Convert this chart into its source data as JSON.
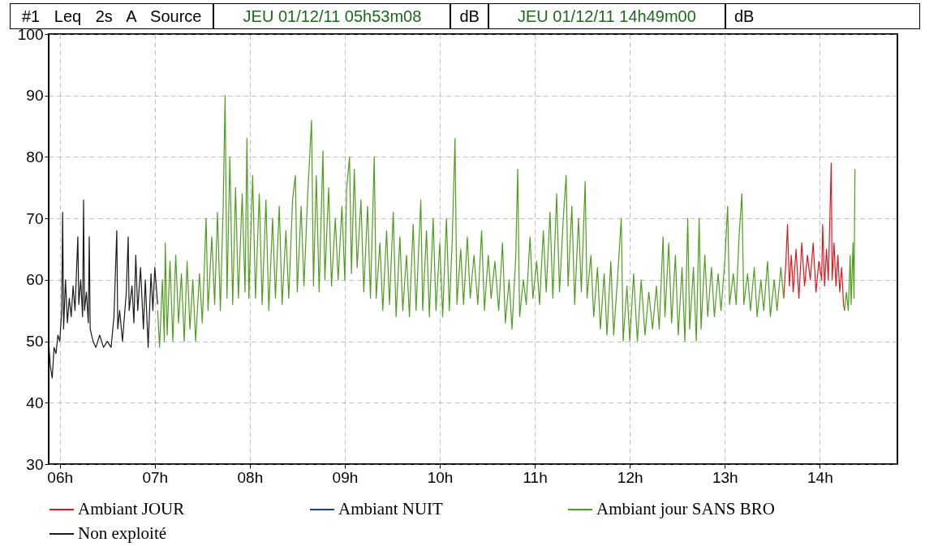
{
  "chart_data": {
    "type": "line",
    "title": "#1 Leq 2s A Source",
    "annotations": [
      "JEU 01/12/11 05h53m08",
      "dB",
      "JEU 01/12/11 14h49m00",
      "dB"
    ],
    "xlim": [
      5.883,
      14.817
    ],
    "xticks": [
      {
        "value": 6,
        "label": "06h"
      },
      {
        "value": 7,
        "label": "07h"
      },
      {
        "value": 8,
        "label": "08h"
      },
      {
        "value": 9,
        "label": "09h"
      },
      {
        "value": 10,
        "label": "10h"
      },
      {
        "value": 11,
        "label": "11h"
      },
      {
        "value": 12,
        "label": "12h"
      },
      {
        "value": 13,
        "label": "13h"
      },
      {
        "value": 14,
        "label": "14h"
      }
    ],
    "ylim": [
      30,
      100
    ],
    "yticks": [
      30,
      40,
      50,
      60,
      70,
      80,
      90,
      100
    ],
    "grid": true,
    "legend": "bottom",
    "line_style": "solid",
    "marker": "none",
    "series": [
      {
        "name": "Ambiant JOUR",
        "color": "#e8141c",
        "x": [
          13.62,
          13.64,
          13.66,
          13.68,
          13.7,
          13.72,
          13.75,
          13.78,
          13.81,
          13.84,
          13.87,
          13.9,
          13.93,
          13.96,
          13.99,
          14.02,
          14.03,
          14.05,
          14.07,
          14.09,
          14.12,
          14.13,
          14.15,
          14.17,
          14.19,
          14.21,
          14.23,
          14.25,
          14.26
        ],
        "values": [
          57,
          62,
          69,
          59,
          64,
          58,
          65,
          57,
          66,
          59,
          64,
          60,
          66,
          58,
          63,
          60,
          69,
          59,
          65,
          60,
          79,
          60,
          66,
          59,
          64,
          58,
          62,
          56,
          55
        ]
      },
      {
        "name": "Ambiant NUIT",
        "color": "#1f3ca0"
      },
      {
        "name": "Ambiant jour SANS BRO",
        "color": "#4e9e1e",
        "x": [
          7.03,
          7.05,
          7.08,
          7.1,
          7.11,
          7.13,
          7.16,
          7.19,
          7.22,
          7.25,
          7.28,
          7.31,
          7.34,
          7.37,
          7.4,
          7.43,
          7.47,
          7.5,
          7.54,
          7.56,
          7.6,
          7.63,
          7.66,
          7.69,
          7.72,
          7.74,
          7.76,
          7.79,
          7.82,
          7.85,
          7.88,
          7.92,
          7.95,
          7.97,
          7.99,
          8.03,
          8.06,
          8.1,
          8.13,
          8.17,
          8.2,
          8.24,
          8.27,
          8.31,
          8.34,
          8.38,
          8.41,
          8.45,
          8.48,
          8.5,
          8.54,
          8.57,
          8.61,
          8.65,
          8.67,
          8.7,
          8.73,
          8.77,
          8.79,
          8.83,
          8.86,
          8.9,
          8.93,
          8.97,
          9.0,
          9.02,
          9.05,
          9.07,
          9.1,
          9.13,
          9.17,
          9.2,
          9.24,
          9.27,
          9.31,
          9.33,
          9.37,
          9.4,
          9.44,
          9.47,
          9.51,
          9.54,
          9.58,
          9.61,
          9.65,
          9.68,
          9.72,
          9.75,
          9.8,
          9.82,
          9.86,
          9.89,
          9.93,
          9.96,
          10.0,
          10.03,
          10.07,
          10.1,
          10.13,
          10.16,
          10.18,
          10.22,
          10.25,
          10.29,
          10.32,
          10.36,
          10.4,
          10.44,
          10.47,
          10.51,
          10.54,
          10.58,
          10.62,
          10.66,
          10.69,
          10.73,
          10.76,
          10.8,
          10.82,
          10.84,
          10.88,
          10.91,
          10.95,
          10.98,
          11.02,
          11.05,
          11.09,
          11.12,
          11.16,
          11.19,
          11.23,
          11.26,
          11.3,
          11.33,
          11.35,
          11.39,
          11.42,
          11.46,
          11.49,
          11.53,
          11.55,
          11.59,
          11.62,
          11.66,
          11.69,
          11.73,
          11.76,
          11.8,
          11.83,
          11.87,
          11.91,
          11.93,
          11.97,
          12.0,
          12.04,
          12.08,
          12.12,
          12.16,
          12.2,
          12.24,
          12.28,
          12.31,
          12.35,
          12.37,
          12.41,
          12.44,
          12.48,
          12.51,
          12.55,
          12.58,
          12.61,
          12.63,
          12.67,
          12.7,
          12.73,
          12.75,
          12.79,
          12.82,
          12.86,
          12.89,
          12.93,
          12.96,
          13.0,
          13.03,
          13.05,
          13.09,
          13.12,
          13.15,
          13.18,
          13.2,
          13.24,
          13.27,
          13.31,
          13.34,
          13.38,
          13.41,
          13.45,
          13.48,
          13.52,
          13.55,
          13.59,
          13.62,
          13.94,
          14.26,
          14.28,
          14.3,
          14.32,
          14.33,
          14.35,
          14.36,
          14.37
        ],
        "values": [
          55,
          49,
          60,
          50,
          66,
          51,
          63,
          50,
          64,
          53,
          61,
          50,
          63,
          52,
          60,
          50,
          61,
          53,
          70,
          55,
          67,
          56,
          71,
          55,
          72,
          90,
          57,
          80,
          56,
          75,
          57,
          74,
          58,
          83,
          57,
          77,
          57,
          74,
          56,
          73,
          55,
          70,
          57,
          72,
          56,
          68,
          57,
          73,
          77,
          58,
          72,
          59,
          74,
          86,
          59,
          77,
          58,
          81,
          60,
          75,
          59,
          70,
          60,
          72,
          60,
          75,
          80,
          61,
          78,
          62,
          73,
          58,
          72,
          57,
          80,
          57,
          66,
          55,
          68,
          56,
          71,
          54,
          67,
          55,
          64,
          54,
          69,
          55,
          73,
          55,
          68,
          54,
          70,
          55,
          66,
          54,
          70,
          55,
          66,
          83,
          56,
          65,
          56,
          67,
          57,
          64,
          56,
          68,
          55,
          64,
          57,
          63,
          55,
          66,
          53,
          60,
          52,
          64,
          78,
          54,
          60,
          56,
          67,
          57,
          63,
          56,
          68,
          58,
          71,
          57,
          74,
          58,
          70,
          77,
          59,
          72,
          56,
          70,
          58,
          76,
          57,
          64,
          54,
          62,
          52,
          61,
          51,
          63,
          51,
          60,
          70,
          50,
          59,
          50,
          61,
          50,
          60,
          51,
          58,
          52,
          59,
          52,
          67,
          54,
          66,
          53,
          64,
          51,
          62,
          50,
          70,
          52,
          62,
          50,
          70,
          52,
          64,
          54,
          62,
          54,
          61,
          55,
          63,
          72,
          56,
          61,
          56,
          67,
          74,
          56,
          61,
          55,
          62,
          54,
          60,
          55,
          63,
          54,
          60,
          55,
          62,
          57,
          null,
          55,
          58,
          55,
          64,
          56,
          66,
          57,
          78
        ]
      },
      {
        "name": "Non exploité",
        "color": "#1a1a1a",
        "x": [
          5.883,
          5.9,
          5.92,
          5.94,
          5.96,
          5.98,
          6.0,
          6.02,
          6.03,
          6.04,
          6.06,
          6.08,
          6.1,
          6.12,
          6.14,
          6.16,
          6.19,
          6.2,
          6.22,
          6.24,
          6.25,
          6.26,
          6.28,
          6.3,
          6.31,
          6.32,
          6.35,
          6.38,
          6.42,
          6.46,
          6.5,
          6.54,
          6.57,
          6.6,
          6.61,
          6.63,
          6.66,
          6.7,
          6.72,
          6.73,
          6.76,
          6.78,
          6.8,
          6.82,
          6.85,
          6.88,
          6.9,
          6.93,
          6.96,
          6.98,
          7.0,
          7.03
        ],
        "values": [
          50,
          46,
          44,
          49,
          48,
          51,
          50,
          55,
          71,
          52,
          60,
          53,
          57,
          54,
          59,
          55,
          67,
          56,
          60,
          54,
          73,
          55,
          58,
          53,
          67,
          52,
          50,
          49,
          51,
          49,
          50,
          49,
          54,
          68,
          52,
          55,
          50,
          58,
          67,
          55,
          59,
          53,
          64,
          55,
          62,
          52,
          60,
          49,
          61,
          55,
          62,
          56
        ]
      }
    ]
  }
}
